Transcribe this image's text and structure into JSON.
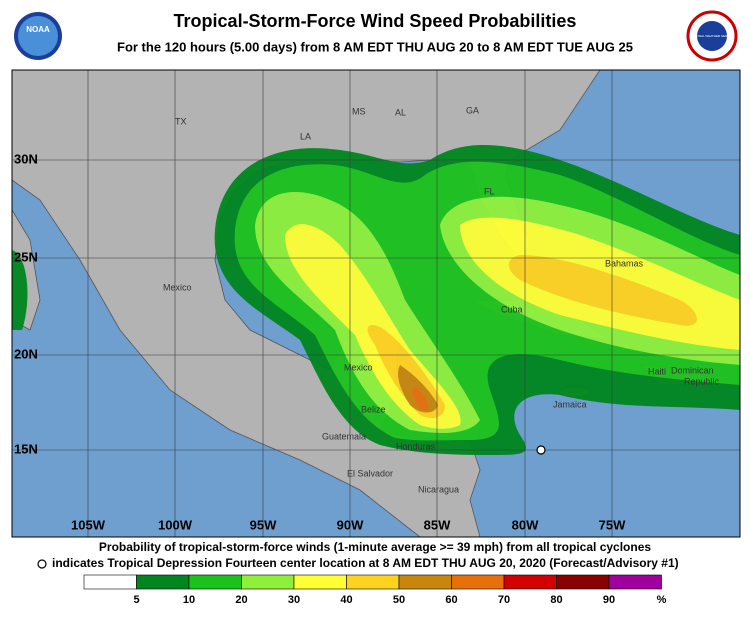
{
  "header": {
    "title": "Tropical-Storm-Force Wind Speed Probabilities",
    "subtitle": "For the 120 hours (5.00 days) from 8 AM EDT THU AUG 20 to 8 AM EDT TUE AUG 25",
    "left_logo": "NOAA",
    "right_logo": "NATIONAL WEATHER SERVICE"
  },
  "map": {
    "lat_labels": [
      "30N",
      "25N",
      "20N",
      "15N"
    ],
    "lon_labels": [
      "105W",
      "100W",
      "95W",
      "90W",
      "85W",
      "80W",
      "75W"
    ],
    "places": [
      "TX",
      "MS",
      "AL",
      "GA",
      "LA",
      "FL",
      "Mexico",
      "Bahamas",
      "Cuba",
      "Mexico",
      "Belize",
      "Guatemala",
      "Honduras",
      "El Salvador",
      "Nicaragua",
      "Jamaica",
      "Haiti",
      "Dominican",
      "Republic"
    ]
  },
  "footer": {
    "caption": "Probability of tropical-storm-force winds (1-minute average >= 39 mph) from all tropical cyclones",
    "note": "indicates Tropical Depression Fourteen center location at 8 AM EDT THU AUG 20, 2020 (Forecast/Advisory #1)"
  },
  "legend": {
    "labels": [
      "5",
      "10",
      "20",
      "30",
      "40",
      "50",
      "60",
      "70",
      "80",
      "90"
    ],
    "unit": "%",
    "colors": [
      "#ffffff",
      "#00861f",
      "#1cc21c",
      "#8ef03a",
      "#ffff33",
      "#ffd21f",
      "#c8860d",
      "#e8700a",
      "#d40000",
      "#8a0000",
      "#a000a0"
    ]
  }
}
